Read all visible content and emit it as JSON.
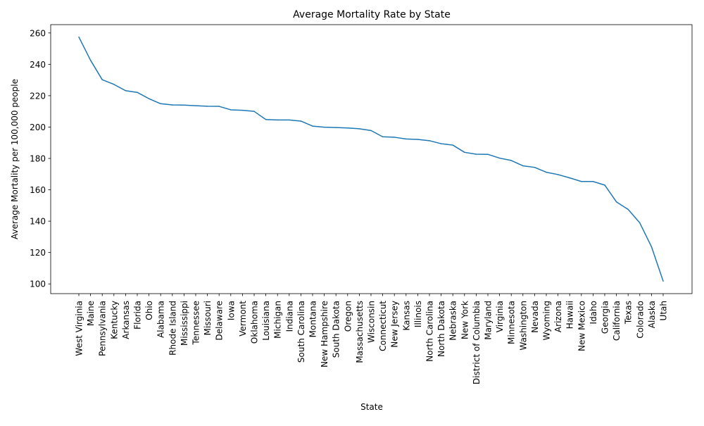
{
  "chart_data": {
    "type": "line",
    "title": "Average Mortality Rate by State",
    "xlabel": "State",
    "ylabel": "Average Mortality per 100,000 people",
    "ylim": [
      93.8,
      265.3
    ],
    "yticks": [
      100,
      120,
      140,
      160,
      180,
      200,
      220,
      240,
      260
    ],
    "grid": false,
    "line_color": "#1f77b4",
    "categories": [
      "West Virginia",
      "Maine",
      "Pennsylvania",
      "Kentucky",
      "Arkansas",
      "Florida",
      "Ohio",
      "Alabama",
      "Rhode Island",
      "Mississippi",
      "Tennessee",
      "Missouri",
      "Delaware",
      "Iowa",
      "Vermont",
      "Oklahoma",
      "Louisiana",
      "Michigan",
      "Indiana",
      "South Carolina",
      "Montana",
      "New Hampshire",
      "South Dakota",
      "Oregon",
      "Massachusetts",
      "Wisconsin",
      "Connecticut",
      "New Jersey",
      "Kansas",
      "Illinois",
      "North Carolina",
      "North Dakota",
      "Nebraska",
      "New York",
      "District of Columbia",
      "Maryland",
      "Virginia",
      "Minnesota",
      "Washington",
      "Nevada",
      "Wyoming",
      "Arizona",
      "Hawaii",
      "New Mexico",
      "Idaho",
      "Georgia",
      "California",
      "Texas",
      "Colorado",
      "Alaska",
      "Utah"
    ],
    "values": [
      257.4,
      242.6,
      230.2,
      227.2,
      223.2,
      222.1,
      218.1,
      214.9,
      214.1,
      214.0,
      213.6,
      213.3,
      213.2,
      211.0,
      210.7,
      210.0,
      204.8,
      204.5,
      204.5,
      203.8,
      200.6,
      199.9,
      199.7,
      199.4,
      198.9,
      197.8,
      193.8,
      193.5,
      192.4,
      192.1,
      191.3,
      189.4,
      188.5,
      183.9,
      182.7,
      182.6,
      180.2,
      178.7,
      175.3,
      174.3,
      171.2,
      169.7,
      167.6,
      165.3,
      165.3,
      163.0,
      152.3,
      147.5,
      138.9,
      123.7,
      101.8
    ]
  }
}
